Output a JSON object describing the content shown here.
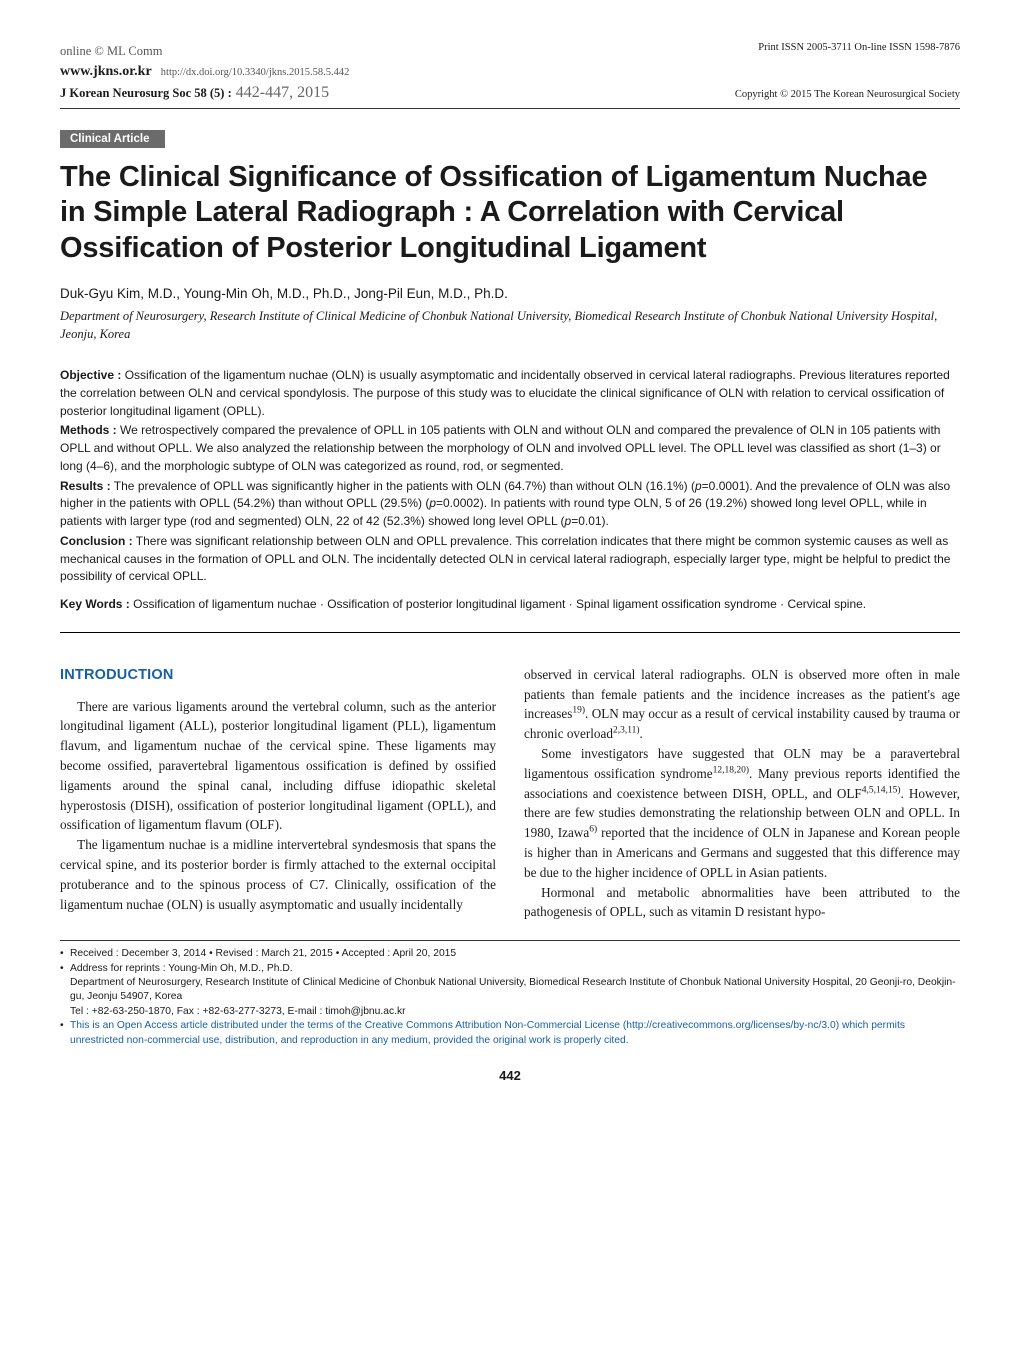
{
  "header": {
    "online_ml": "online © ML Comm",
    "site_url": "www.jkns.or.kr",
    "doi": "http://dx.doi.org/10.3340/jkns.2015.58.5.442",
    "issn": "Print ISSN 2005-3711  On-line ISSN 1598-7876",
    "journal_line": "J Korean Neurosurg Soc 58 (5) :",
    "pages": " 442-447, 2015",
    "copyright": "Copyright © 2015 The Korean Neurosurgical Society"
  },
  "badge": "Clinical Article",
  "title": "The Clinical Significance of Ossification of Ligamentum Nuchae in Simple Lateral Radiograph : A Correlation with Cervical Ossification of Posterior Longitudinal Ligament",
  "authors": "Duk-Gyu Kim, M.D., Young-Min Oh, M.D., Ph.D., Jong-Pil Eun, M.D., Ph.D.",
  "affiliation": "Department of Neurosurgery, Research Institute of Clinical Medicine of Chonbuk National University, Biomedical Research Institute of Chonbuk National University Hospital, Jeonju, Korea",
  "abstract": {
    "objective_label": "Objective :",
    "objective": " Ossification of the ligamentum nuchae (OLN) is usually asymptomatic and incidentally observed in cervical lateral radiographs. Previous literatures reported the correlation between OLN and cervical spondylosis. The purpose of this study was to elucidate the clinical significance of OLN with relation to cervical ossification of posterior longitudinal ligament (OPLL).",
    "methods_label": "Methods :",
    "methods": " We retrospectively compared the prevalence of OPLL in 105 patients with OLN and without OLN and compared the prevalence of OLN in 105 patients with OPLL and without OPLL. We also analyzed the relationship between the morphology of OLN and involved OPLL level. The OPLL level was classified as short (1–3) or long (4–6), and the morphologic subtype of OLN was categorized as round, rod, or segmented.",
    "results_label": "Results :",
    "results_a": " The prevalence of OPLL was significantly higher in the patients with OLN (64.7%)  than without OLN (16.1%) (",
    "results_p1_i": "p",
    "results_b": "=0.0001). And the prevalence of OLN was also higher in the patients with OPLL (54.2%) than without OPLL (29.5%) (",
    "results_p2_i": "p",
    "results_c": "=0.0002). In patients with round type OLN, 5 of 26 (19.2%) showed long level OPLL, while in patients with larger type (rod and segmented) OLN, 22 of 42 (52.3%) showed long level OPLL (",
    "results_p3_i": "p",
    "results_d": "=0.01).",
    "conclusion_label": "Conclusion :",
    "conclusion": " There was significant relationship between OLN and OPLL prevalence. This correlation indicates that there might be common systemic causes as well as mechanical causes in the formation of OPLL and OLN. The incidentally detected OLN in cervical lateral radiograph, especially larger type, might be helpful to predict the possibility of cervical OPLL.",
    "keywords_label": "Key Words :",
    "keywords": " Ossification of ligamentum nuchae · Ossification of posterior longitudinal ligament · Spinal ligament ossification syndrome · Cervical spine."
  },
  "body": {
    "intro_heading": "INTRODUCTION",
    "p1": "There are various ligaments around the vertebral column, such as the anterior longitudinal ligament (ALL), posterior longitudinal ligament (PLL), ligamentum flavum, and ligamentum nuchae of the cervical spine. These ligaments may become ossified, paravertebral ligamentous ossification is defined by ossified ligaments around the spinal canal, including diffuse idiopathic skeletal hyperostosis (DISH), ossification of posterior longitudinal ligament (OPLL), and ossification of ligamentum flavum (OLF).",
    "p2": "The ligamentum nuchae is a midline intervertebral syndesmosis that spans the cervical spine, and its posterior border is firmly attached to the external occipital protuberance and to the spinous process of C7. Clinically, ossification of the ligamentum nuchae (OLN) is usually asymptomatic and usually incidentally",
    "p3a": "observed in cervical lateral radiographs. OLN is observed more often in male patients than female patients and the incidence increases as the patient's age increases",
    "p3_sup1": "19)",
    "p3b": ". OLN may occur as a result of cervical instability caused by trauma or chronic overload",
    "p3_sup2": "2,3,11)",
    "p3c": ".",
    "p4a": "Some investigators have suggested that OLN may be a paravertebral ligamentous ossification syndrome",
    "p4_sup1": "12,18,20)",
    "p4b": ". Many previous reports identified the associations and coexistence between DISH, OPLL, and OLF",
    "p4_sup2": "4,5,14,15)",
    "p4c": ". However, there are few studies demonstrating the relationship between OLN and OPLL. In 1980, Izawa",
    "p4_sup3": "6)",
    "p4d": " reported that the incidence of OLN in Japanese and Korean people is higher than in Americans and Germans and suggested that this difference may be due to the higher incidence of OPLL in Asian patients.",
    "p5": "Hormonal and metabolic abnormalities have been attributed to the pathogenesis of OPLL, such as vitamin D resistant hypo-"
  },
  "footnotes": {
    "received": "Received : December 3, 2014  • Revised : March 21, 2015  • Accepted : April 20, 2015",
    "address_label": "Address for reprints : Young-Min Oh, M.D., Ph.D.",
    "address_line1": "Department of Neurosurgery, Research Institute of Clinical Medicine of Chonbuk National University, Biomedical Research Institute of Chonbuk National University Hospital, 20 Geonji-ro, Deokjin-gu, Jeonju 54907, Korea",
    "address_line2": "Tel : +82-63-250-1870,  Fax : +82-63-277-3273,  E-mail : timoh@jbnu.ac.kr",
    "oa": "This is an Open Access article distributed under the terms of the Creative Commons Attribution Non-Commercial License (http://creativecommons.org/licenses/by-nc/3.0) which permits unrestricted non-commercial use, distribution, and reproduction in any medium, provided the original work is properly cited."
  },
  "page_number": "442",
  "colors": {
    "section_heading": "#1760a5",
    "badge_bg": "#6b6b6b",
    "badge_fg": "#ffffff",
    "text": "#1a1a1a",
    "muted": "#555555"
  }
}
